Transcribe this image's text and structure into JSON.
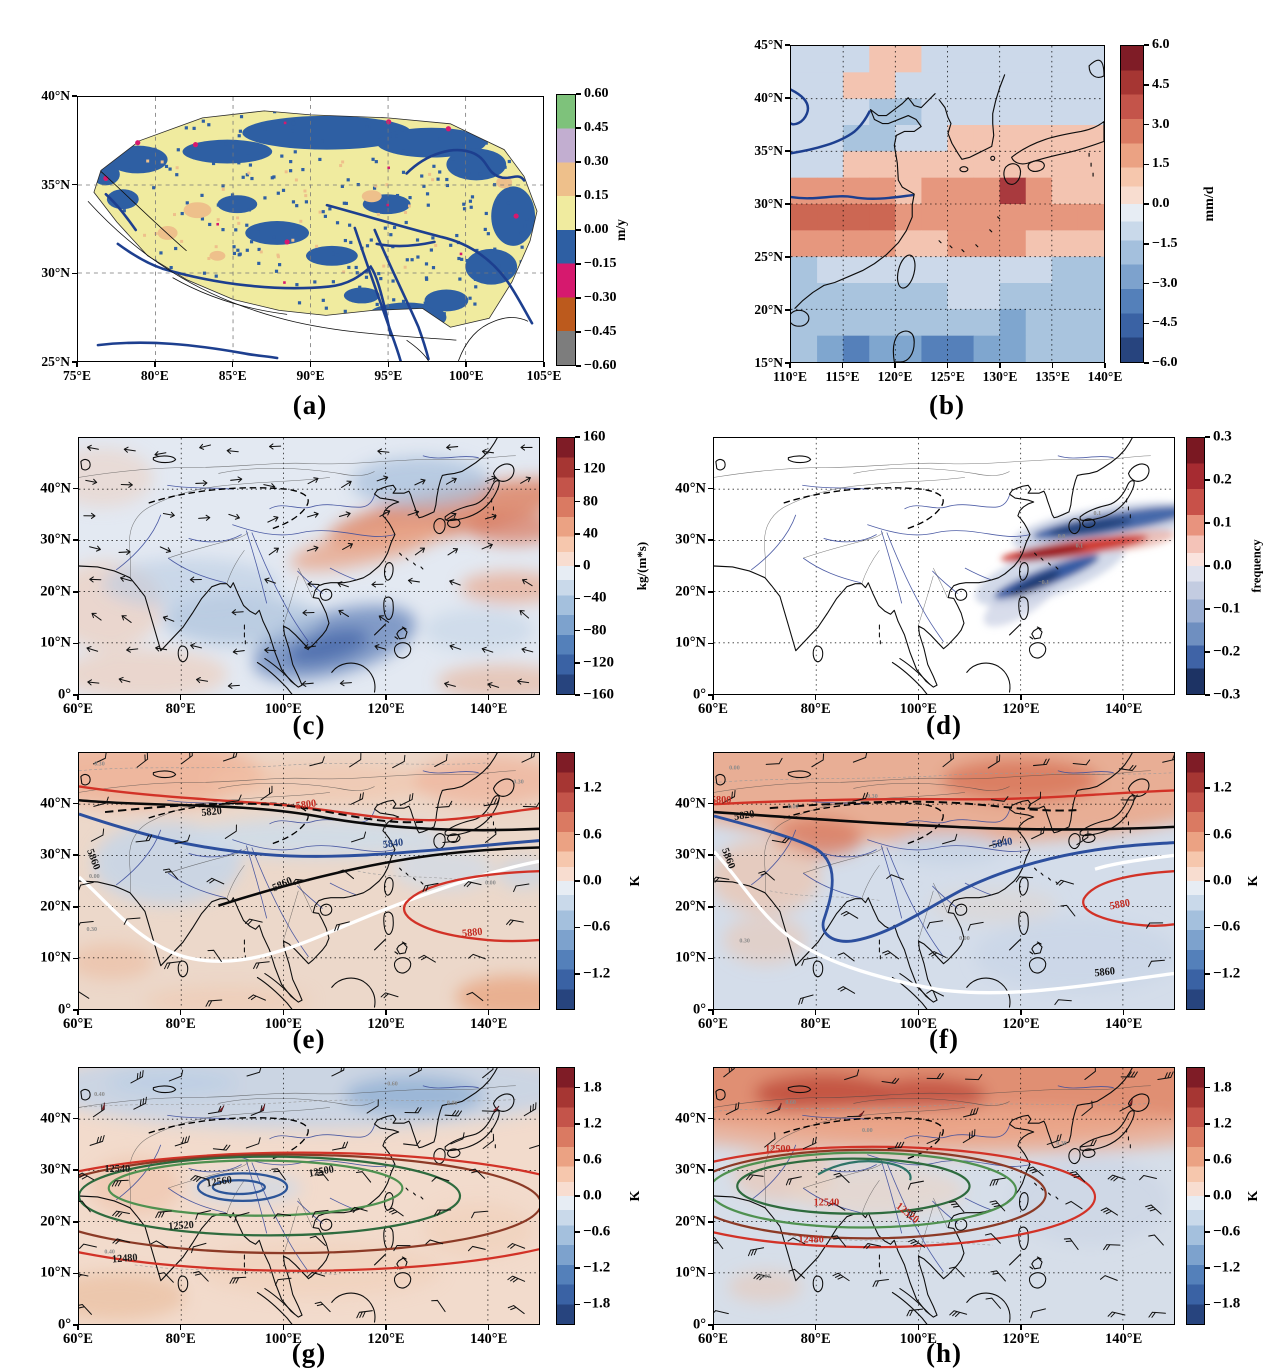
{
  "chart_data": [
    {
      "id": "a",
      "caption": "(a)",
      "type": "categorical-pixel-map",
      "region": "Tibetan Plateau",
      "lon_range": [
        75,
        105
      ],
      "lat_range": [
        25,
        40
      ],
      "x_ticks": [
        "75°E",
        "80°E",
        "85°E",
        "90°E",
        "95°E",
        "100°E",
        "105°E"
      ],
      "y_ticks": [
        "25°N",
        "30°N",
        "35°N",
        "40°N"
      ],
      "colorbar": {
        "unit": "m/y",
        "tick_labels": [
          "0.60",
          "0.45",
          "0.30",
          "0.15",
          "0.00",
          "−0.15",
          "−0.30",
          "−0.45",
          "−0.60"
        ],
        "segment_colors": [
          "#7ec27b",
          "#c2aed0",
          "#eec08b",
          "#f0eb9f",
          "#2e5fa3",
          "#d6196e",
          "#bc5a1d",
          "#7d7d7d"
        ]
      }
    },
    {
      "id": "b",
      "caption": "(b)",
      "type": "grid-heatmap-map",
      "region": "East Asia",
      "lon_range": [
        110,
        140
      ],
      "lat_range": [
        15,
        45
      ],
      "x_ticks": [
        "110°E",
        "115°E",
        "120°E",
        "125°E",
        "130°E",
        "135°E",
        "140°E"
      ],
      "y_ticks": [
        "15°N",
        "20°N",
        "25°N",
        "30°N",
        "35°N",
        "40°N",
        "45°N"
      ],
      "colorbar": {
        "unit": "mm/d",
        "tick_labels": [
          "6.0",
          "4.5",
          "3.0",
          "1.5",
          "0.0",
          "−1.5",
          "−3.0",
          "−4.5",
          "−6.0"
        ]
      },
      "grid": {
        "cell_deg": 2.5,
        "origin": "north-west",
        "unit": "mm/d",
        "rows": [
          [
            -0.8,
            -0.8,
            -0.8,
            0.6,
            0.6,
            -0.8,
            -0.8,
            -0.8,
            -0.8,
            -0.8,
            -0.8,
            -0.8
          ],
          [
            -0.8,
            -0.8,
            0.6,
            0.6,
            -0.8,
            -0.8,
            -0.8,
            -0.8,
            -0.8,
            -0.8,
            -0.8,
            -0.8
          ],
          [
            -0.8,
            -0.8,
            -0.8,
            -1.8,
            -2.6,
            -1.2,
            -0.8,
            -0.8,
            -0.6,
            -0.6,
            -0.8,
            -0.8
          ],
          [
            -0.8,
            -0.8,
            -1.8,
            -1.8,
            -1.2,
            -0.6,
            0.8,
            0.4,
            0.8,
            0.8,
            0.6,
            0.6
          ],
          [
            -0.8,
            -0.4,
            0.8,
            0.8,
            0.8,
            0.8,
            0.8,
            1.2,
            1.2,
            1.2,
            0.8,
            0.8
          ],
          [
            1.6,
            2.2,
            2.2,
            2.2,
            1.0,
            2.0,
            2.0,
            2.0,
            5.2,
            2.0,
            1.2,
            1.2
          ],
          [
            3.6,
            3.6,
            3.6,
            3.6,
            1.6,
            1.6,
            2.0,
            2.0,
            2.0,
            2.8,
            2.0,
            2.0
          ],
          [
            1.6,
            1.6,
            1.6,
            1.6,
            1.0,
            1.0,
            2.0,
            2.0,
            2.0,
            1.0,
            1.0,
            1.0
          ],
          [
            -1.6,
            -1.0,
            -1.0,
            -1.0,
            -1.0,
            -1.0,
            -1.0,
            -0.5,
            -0.5,
            -1.0,
            -1.6,
            -1.6
          ],
          [
            -2.8,
            -2.8,
            -1.8,
            -1.8,
            -1.8,
            -1.8,
            -1.0,
            -1.0,
            -1.8,
            -1.8,
            -1.6,
            -1.6
          ],
          [
            -1.8,
            -2.8,
            -2.8,
            -2.8,
            -2.8,
            -2.8,
            -2.8,
            -2.8,
            -3.8,
            -1.8,
            -1.8,
            -1.8
          ],
          [
            -1.8,
            -3.8,
            -4.8,
            -3.8,
            -3.8,
            -4.8,
            -4.8,
            -3.8,
            -3.8,
            -1.8,
            -1.8,
            -1.8
          ]
        ]
      }
    },
    {
      "id": "c",
      "caption": "(c)",
      "type": "filled-contour-map",
      "region": "Asia",
      "lon_range": [
        60,
        150
      ],
      "lat_range": [
        0,
        50
      ],
      "x_ticks": [
        "60°E",
        "80°E",
        "100°E",
        "120°E",
        "140°E"
      ],
      "y_ticks": [
        "0°",
        "10°N",
        "20°N",
        "30°N",
        "40°N"
      ],
      "overlay": "moisture flux vectors",
      "colorbar": {
        "unit": "kg/(m*s)",
        "tick_labels": [
          "160",
          "120",
          "80",
          "40",
          "0",
          "−40",
          "−80",
          "−120",
          "−160"
        ]
      }
    },
    {
      "id": "d",
      "caption": "(d)",
      "type": "filled-contour-map",
      "region": "Asia",
      "lon_range": [
        60,
        150
      ],
      "lat_range": [
        0,
        50
      ],
      "x_ticks": [
        "60°E",
        "80°E",
        "100°E",
        "120°E",
        "140°E"
      ],
      "y_ticks": [
        "0°",
        "10°N",
        "20°N",
        "30°N",
        "40°N"
      ],
      "colorbar": {
        "unit": "frequency",
        "tick_labels": [
          "0.3",
          "0.2",
          "0.1",
          "0.0",
          "−0.1",
          "−0.2",
          "−0.3"
        ]
      },
      "minor_labels": [
        {
          "text": "0.1",
          "lon": 135,
          "lat": 35
        },
        {
          "text": "0.0",
          "lon": 128,
          "lat": 30.5
        },
        {
          "text": "0.1",
          "lon": 131.5,
          "lat": 28.6
        },
        {
          "text": "−0.1",
          "lon": 124.5,
          "lat": 21.5
        }
      ]
    },
    {
      "id": "e",
      "caption": "(e)",
      "type": "filled-contour-map",
      "region": "Asia",
      "lon_range": [
        60,
        150
      ],
      "lat_range": [
        0,
        50
      ],
      "x_ticks": [
        "60°E",
        "80°E",
        "100°E",
        "120°E",
        "140°E"
      ],
      "y_ticks": [
        "0°",
        "10°N",
        "20°N",
        "30°N",
        "40°N"
      ],
      "overlay": "500 hPa geopotential height contours and wind barbs",
      "colorbar": {
        "unit": "K",
        "tick_labels": [
          "1.2",
          "0.6",
          "0.0",
          "−0.6",
          "−1.2"
        ]
      },
      "contour_labels": [
        {
          "text": "5800",
          "lon": 104.5,
          "lat": 39.3,
          "rot": -8,
          "color": "#c22a20"
        },
        {
          "text": "5820",
          "lon": 86,
          "lat": 37.9,
          "rot": -6,
          "color": "#111111"
        },
        {
          "text": "5840",
          "lon": 121.5,
          "lat": 31.7,
          "rot": -7,
          "color": "#23407f"
        },
        {
          "text": "5860",
          "lon": 100,
          "lat": 23.8,
          "rot": -24,
          "color": "#111111"
        },
        {
          "text": "5860",
          "lon": 62.3,
          "lat": 29,
          "rot": 68,
          "color": "#111111"
        },
        {
          "text": "5880",
          "lon": 137,
          "lat": 14.3,
          "rot": -6,
          "color": "#c22a20"
        }
      ],
      "minor_labels": [
        {
          "text": "0.30",
          "lon": 64,
          "lat": 47.6
        },
        {
          "text": "0.00",
          "lon": 63,
          "lat": 25.6
        },
        {
          "text": "0.30",
          "lon": 62.5,
          "lat": 15.2
        },
        {
          "text": "0.00",
          "lon": 140.5,
          "lat": 24.3
        },
        {
          "text": "0.30",
          "lon": 146,
          "lat": 44
        }
      ]
    },
    {
      "id": "f",
      "caption": "(f)",
      "type": "filled-contour-map",
      "region": "Asia",
      "lon_range": [
        60,
        150
      ],
      "lat_range": [
        0,
        50
      ],
      "x_ticks": [
        "60°E",
        "80°E",
        "100°E",
        "120°E",
        "140°E"
      ],
      "y_ticks": [
        "0°",
        "10°N",
        "20°N",
        "30°N",
        "40°N"
      ],
      "overlay": "500 hPa geopotential height contours and wind barbs",
      "colorbar": {
        "unit": "K",
        "tick_labels": [
          "1.2",
          "0.6",
          "0.0",
          "−0.6",
          "−1.2"
        ]
      },
      "contour_labels": [
        {
          "text": "5800",
          "lon": 61.4,
          "lat": 40.2,
          "rot": 0,
          "color": "#c22a20"
        },
        {
          "text": "5820",
          "lon": 66,
          "lat": 37.2,
          "rot": -8,
          "color": "#111111"
        },
        {
          "text": "5840",
          "lon": 116.5,
          "lat": 31.8,
          "rot": -10,
          "color": "#23407f"
        },
        {
          "text": "5860",
          "lon": 62.3,
          "lat": 29.2,
          "rot": 68,
          "color": "#111111"
        },
        {
          "text": "5880",
          "lon": 139.5,
          "lat": 19.8,
          "rot": -10,
          "color": "#c22a20"
        },
        {
          "text": "5860",
          "lon": 136.5,
          "lat": 6.6,
          "rot": -6,
          "color": "#111111"
        }
      ],
      "minor_labels": [
        {
          "text": "0.00",
          "lon": 64,
          "lat": 46.8
        },
        {
          "text": "0.30",
          "lon": 91,
          "lat": 41.2
        },
        {
          "text": "0.00",
          "lon": 75.5,
          "lat": 39.2
        },
        {
          "text": "0.00",
          "lon": 109,
          "lat": 13.5
        },
        {
          "text": "0.30",
          "lon": 66,
          "lat": 13
        }
      ]
    },
    {
      "id": "g",
      "caption": "(g)",
      "type": "filled-contour-map",
      "region": "Asia",
      "lon_range": [
        60,
        150
      ],
      "lat_range": [
        0,
        50
      ],
      "x_ticks": [
        "60°E",
        "80°E",
        "100°E",
        "120°E",
        "140°E"
      ],
      "y_ticks": [
        "0°",
        "10°N",
        "20°N",
        "30°N",
        "40°N"
      ],
      "overlay": "200 hPa geopotential height contours and wind barbs",
      "colorbar": {
        "unit": "K",
        "tick_labels": [
          "1.8",
          "1.2",
          "0.6",
          "0.0",
          "−0.6",
          "−1.2",
          "−1.8"
        ]
      },
      "contour_labels": [
        {
          "text": "12540",
          "lon": 67.5,
          "lat": 29.7,
          "rot": 0,
          "color": "#1a1a1a"
        },
        {
          "text": "12560",
          "lon": 87.5,
          "lat": 27.2,
          "rot": -8,
          "color": "#1a1a1a"
        },
        {
          "text": "12500",
          "lon": 107.5,
          "lat": 29.2,
          "rot": -10,
          "color": "#1a1a1a"
        },
        {
          "text": "12520",
          "lon": 80,
          "lat": 18.6,
          "rot": -4,
          "color": "#1a1a1a"
        },
        {
          "text": "12480",
          "lon": 69,
          "lat": 12.2,
          "rot": -4,
          "color": "#1a1a1a"
        }
      ],
      "minor_labels": [
        {
          "text": "−0.60",
          "lon": 121,
          "lat": 46.6
        },
        {
          "text": "0.40",
          "lon": 64,
          "lat": 44.5
        },
        {
          "text": "0.40",
          "lon": 66,
          "lat": 13.8
        },
        {
          "text": "0.00",
          "lon": 133,
          "lat": 42.8
        }
      ]
    },
    {
      "id": "h",
      "caption": "(h)",
      "type": "filled-contour-map",
      "region": "Asia",
      "lon_range": [
        60,
        150
      ],
      "lat_range": [
        0,
        50
      ],
      "x_ticks": [
        "60°E",
        "80°E",
        "100°E",
        "120°E",
        "140°E"
      ],
      "y_ticks": [
        "0°",
        "10°N",
        "20°N",
        "30°N",
        "40°N"
      ],
      "overlay": "200 hPa geopotential height contours and wind barbs",
      "colorbar": {
        "unit": "K",
        "tick_labels": [
          "1.8",
          "1.2",
          "0.6",
          "0.0",
          "−0.6",
          "−1.2",
          "−1.8"
        ]
      },
      "contour_labels": [
        {
          "text": "12500",
          "lon": 72.5,
          "lat": 33.6,
          "rot": 0,
          "color": "#c22a20"
        },
        {
          "text": "12540",
          "lon": 82,
          "lat": 23.1,
          "rot": 0,
          "color": "#c22a20"
        },
        {
          "text": "12520",
          "lon": 97.5,
          "lat": 21.2,
          "rot": 38,
          "color": "#c22a20"
        },
        {
          "text": "12480",
          "lon": 79,
          "lat": 15.9,
          "rot": 0,
          "color": "#c22a20"
        }
      ],
      "minor_labels": [
        {
          "text": "0.60",
          "lon": 75,
          "lat": 43
        },
        {
          "text": "0.00",
          "lon": 90,
          "lat": 37.5
        },
        {
          "text": "0.30",
          "lon": 128,
          "lat": 35
        },
        {
          "text": "0.00",
          "lon": 70,
          "lat": 9
        }
      ]
    }
  ]
}
